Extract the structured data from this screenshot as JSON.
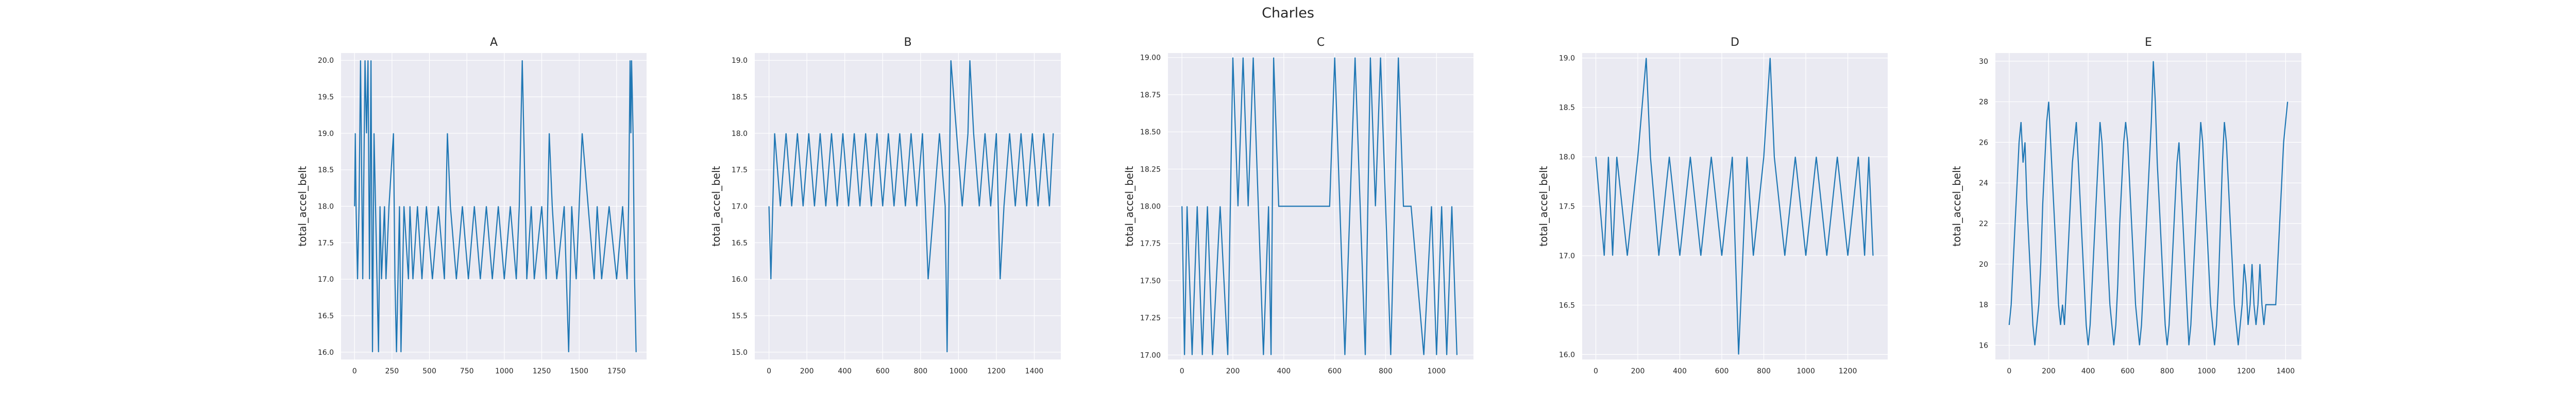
{
  "figure": {
    "title": "Charles"
  },
  "style": {
    "plot_background": "#eaeaf2",
    "grid_color": "#ffffff",
    "line_color": "#1f77b4",
    "text_color": "#262626"
  },
  "chart_data": [
    {
      "type": "line",
      "title": "A",
      "ylabel": "total_accel_belt",
      "xlabel": "",
      "xlim": [
        -90,
        1950
      ],
      "ylim": [
        15.9,
        20.1
      ],
      "xticks": [
        0,
        250,
        500,
        750,
        1000,
        1250,
        1500,
        1750
      ],
      "yticks": [
        16.0,
        16.5,
        17.0,
        17.5,
        18.0,
        18.5,
        19.0,
        19.5,
        20.0
      ],
      "yticklabels": [
        "16.0",
        "16.5",
        "17.0",
        "17.5",
        "18.0",
        "18.5",
        "19.0",
        "19.5",
        "20.0"
      ],
      "grid": true,
      "series": [
        {
          "x": [
            0,
            5,
            10,
            20,
            30,
            40,
            55,
            70,
            80,
            90,
            100,
            110,
            120,
            130,
            140,
            150,
            160,
            170,
            180,
            200,
            210,
            230,
            260,
            270,
            280,
            300,
            310,
            330,
            360,
            370,
            390,
            420,
            450,
            480,
            520,
            560,
            600,
            620,
            640,
            680,
            720,
            760,
            800,
            840,
            880,
            920,
            960,
            1000,
            1040,
            1080,
            1100,
            1120,
            1150,
            1180,
            1200,
            1250,
            1280,
            1300,
            1320,
            1350,
            1400,
            1430,
            1450,
            1480,
            1520,
            1560,
            1600,
            1620,
            1650,
            1700,
            1750,
            1790,
            1820,
            1830,
            1840,
            1845,
            1850,
            1860,
            1870,
            1880
          ],
          "y": [
            18,
            19,
            18,
            17,
            18,
            20,
            17,
            20,
            19,
            20,
            17,
            20,
            16,
            19,
            18,
            17,
            16,
            18,
            17,
            18,
            17,
            18,
            19,
            17,
            16,
            18,
            16,
            18,
            17,
            18,
            17,
            18,
            17,
            18,
            17,
            18,
            17,
            19,
            18,
            17,
            18,
            17,
            18,
            17,
            18,
            17,
            18,
            17,
            18,
            17,
            18,
            20,
            17,
            18,
            17,
            18,
            17,
            19,
            18,
            17,
            18,
            16,
            18,
            17,
            19,
            18,
            17,
            18,
            17,
            18,
            17,
            18,
            17,
            18,
            20,
            19,
            20,
            19,
            17,
            16
          ]
        }
      ]
    },
    {
      "type": "line",
      "title": "B",
      "ylabel": "total_accel_belt",
      "xlabel": "",
      "xlim": [
        -75,
        1540
      ],
      "ylim": [
        14.9,
        19.1
      ],
      "xticks": [
        0,
        200,
        400,
        600,
        800,
        1000,
        1200,
        1400
      ],
      "yticks": [
        15.0,
        15.5,
        16.0,
        16.5,
        17.0,
        17.5,
        18.0,
        18.5,
        19.0
      ],
      "yticklabels": [
        "15.0",
        "15.5",
        "16.0",
        "16.5",
        "17.0",
        "17.5",
        "18.0",
        "18.5",
        "19.0"
      ],
      "grid": true,
      "series": [
        {
          "x": [
            0,
            10,
            20,
            30,
            60,
            90,
            120,
            150,
            180,
            210,
            240,
            270,
            300,
            330,
            360,
            390,
            420,
            450,
            480,
            510,
            540,
            570,
            600,
            630,
            660,
            690,
            720,
            750,
            780,
            810,
            840,
            870,
            900,
            930,
            940,
            960,
            990,
            1020,
            1050,
            1060,
            1080,
            1110,
            1140,
            1170,
            1200,
            1220,
            1240,
            1270,
            1300,
            1330,
            1360,
            1390,
            1420,
            1450,
            1480,
            1500
          ],
          "y": [
            17,
            16,
            17,
            18,
            17,
            18,
            17,
            18,
            17,
            18,
            17,
            18,
            17,
            18,
            17,
            18,
            17,
            18,
            17,
            18,
            17,
            18,
            17,
            18,
            17,
            18,
            17,
            18,
            17,
            18,
            16,
            17,
            18,
            17,
            15,
            19,
            18,
            17,
            18,
            19,
            18,
            17,
            18,
            17,
            18,
            16,
            17,
            18,
            17,
            18,
            17,
            18,
            17,
            18,
            17,
            18
          ]
        }
      ]
    },
    {
      "type": "line",
      "title": "C",
      "ylabel": "total_accel_belt",
      "xlabel": "",
      "xlim": [
        -55,
        1145
      ],
      "ylim": [
        16.97,
        19.03
      ],
      "xticks": [
        0,
        200,
        400,
        600,
        800,
        1000
      ],
      "yticks": [
        17.0,
        17.25,
        17.5,
        17.75,
        18.0,
        18.25,
        18.5,
        18.75,
        19.0
      ],
      "yticklabels": [
        "17.00",
        "17.25",
        "17.50",
        "17.75",
        "18.00",
        "18.25",
        "18.50",
        "18.75",
        "19.00"
      ],
      "grid": true,
      "series": [
        {
          "x": [
            0,
            10,
            20,
            40,
            60,
            80,
            100,
            120,
            150,
            180,
            200,
            220,
            240,
            260,
            280,
            300,
            320,
            340,
            350,
            360,
            380,
            400,
            450,
            500,
            550,
            580,
            600,
            620,
            640,
            660,
            680,
            700,
            720,
            740,
            760,
            780,
            800,
            820,
            850,
            870,
            900,
            950,
            980,
            1000,
            1020,
            1040,
            1060,
            1080
          ],
          "y": [
            18,
            17,
            18,
            17,
            18,
            17,
            18,
            17,
            18,
            17,
            19,
            18,
            19,
            18,
            19,
            18,
            17,
            18,
            17,
            19,
            18,
            18,
            18,
            18,
            18,
            18,
            19,
            18,
            17,
            18,
            19,
            18,
            17,
            19,
            18,
            19,
            18,
            17,
            19,
            18,
            18,
            17,
            18,
            17,
            18,
            17,
            18,
            17
          ]
        }
      ]
    },
    {
      "type": "line",
      "title": "D",
      "ylabel": "total_accel_belt",
      "xlabel": "",
      "xlim": [
        -65,
        1390
      ],
      "ylim": [
        15.95,
        19.05
      ],
      "xticks": [
        0,
        200,
        400,
        600,
        800,
        1000,
        1200
      ],
      "yticks": [
        16.0,
        16.5,
        17.0,
        17.5,
        18.0,
        18.5,
        19.0
      ],
      "yticklabels": [
        "16.0",
        "16.5",
        "17.0",
        "17.5",
        "18.0",
        "18.5",
        "19.0"
      ],
      "grid": true,
      "series": [
        {
          "x": [
            0,
            40,
            60,
            80,
            100,
            150,
            200,
            240,
            260,
            300,
            350,
            400,
            450,
            500,
            550,
            600,
            650,
            680,
            700,
            720,
            750,
            800,
            830,
            850,
            900,
            950,
            1000,
            1050,
            1100,
            1150,
            1200,
            1250,
            1280,
            1300,
            1320
          ],
          "y": [
            18,
            17,
            18,
            17,
            18,
            17,
            18,
            19,
            18,
            17,
            18,
            17,
            18,
            17,
            18,
            17,
            18,
            16,
            17,
            18,
            17,
            18,
            19,
            18,
            17,
            18,
            17,
            18,
            17,
            18,
            17,
            18,
            17,
            18,
            17
          ]
        }
      ]
    },
    {
      "type": "line",
      "title": "E",
      "ylabel": "total_accel_belt",
      "xlabel": "",
      "xlim": [
        -70,
        1480
      ],
      "ylim": [
        15.3,
        30.4
      ],
      "xticks": [
        0,
        200,
        400,
        600,
        800,
        1000,
        1200,
        1400
      ],
      "yticks": [
        16,
        18,
        20,
        22,
        24,
        26,
        28,
        30
      ],
      "yticklabels": [
        "16",
        "18",
        "20",
        "22",
        "24",
        "26",
        "28",
        "30"
      ],
      "grid": true,
      "series": [
        {
          "x": [
            0,
            10,
            20,
            30,
            40,
            50,
            60,
            70,
            80,
            90,
            100,
            110,
            120,
            130,
            140,
            150,
            160,
            170,
            180,
            190,
            200,
            210,
            220,
            230,
            240,
            250,
            260,
            270,
            280,
            290,
            300,
            310,
            320,
            330,
            340,
            350,
            360,
            370,
            380,
            390,
            400,
            410,
            420,
            430,
            440,
            450,
            460,
            470,
            480,
            490,
            500,
            510,
            520,
            530,
            540,
            550,
            560,
            570,
            580,
            590,
            600,
            610,
            620,
            630,
            640,
            650,
            660,
            670,
            680,
            690,
            700,
            710,
            720,
            730,
            740,
            750,
            760,
            770,
            780,
            790,
            800,
            810,
            820,
            830,
            840,
            850,
            860,
            870,
            880,
            890,
            900,
            910,
            920,
            930,
            940,
            950,
            960,
            970,
            980,
            990,
            1000,
            1010,
            1020,
            1030,
            1040,
            1050,
            1060,
            1070,
            1080,
            1090,
            1100,
            1110,
            1120,
            1130,
            1140,
            1150,
            1160,
            1170,
            1180,
            1190,
            1200,
            1210,
            1220,
            1230,
            1240,
            1250,
            1260,
            1270,
            1280,
            1290,
            1300,
            1310,
            1320,
            1330,
            1340,
            1350,
            1360,
            1370,
            1380,
            1390,
            1400,
            1410
          ],
          "y": [
            17,
            18,
            20,
            22,
            24,
            26,
            27,
            25,
            26,
            23,
            21,
            19,
            17,
            16,
            17,
            18,
            20,
            23,
            25,
            27,
            28,
            26,
            24,
            22,
            20,
            18,
            17,
            18,
            17,
            19,
            21,
            23,
            25,
            26,
            27,
            25,
            23,
            21,
            19,
            17,
            16,
            17,
            19,
            21,
            23,
            25,
            27,
            26,
            24,
            22,
            20,
            18,
            17,
            16,
            17,
            19,
            22,
            24,
            26,
            27,
            26,
            24,
            22,
            20,
            18,
            17,
            16,
            17,
            19,
            21,
            23,
            25,
            27,
            30,
            28,
            25,
            23,
            21,
            19,
            17,
            16,
            17,
            19,
            21,
            23,
            25,
            26,
            24,
            22,
            20,
            18,
            16,
            17,
            19,
            21,
            23,
            25,
            27,
            26,
            24,
            22,
            20,
            18,
            17,
            16,
            17,
            19,
            22,
            25,
            27,
            26,
            24,
            22,
            20,
            18,
            17,
            16,
            17,
            18,
            20,
            19,
            17,
            18,
            20,
            18,
            17,
            18,
            20,
            18,
            17,
            18,
            18,
            18,
            18,
            18,
            18,
            20,
            22,
            24,
            26,
            27,
            28
          ]
        }
      ]
    }
  ]
}
